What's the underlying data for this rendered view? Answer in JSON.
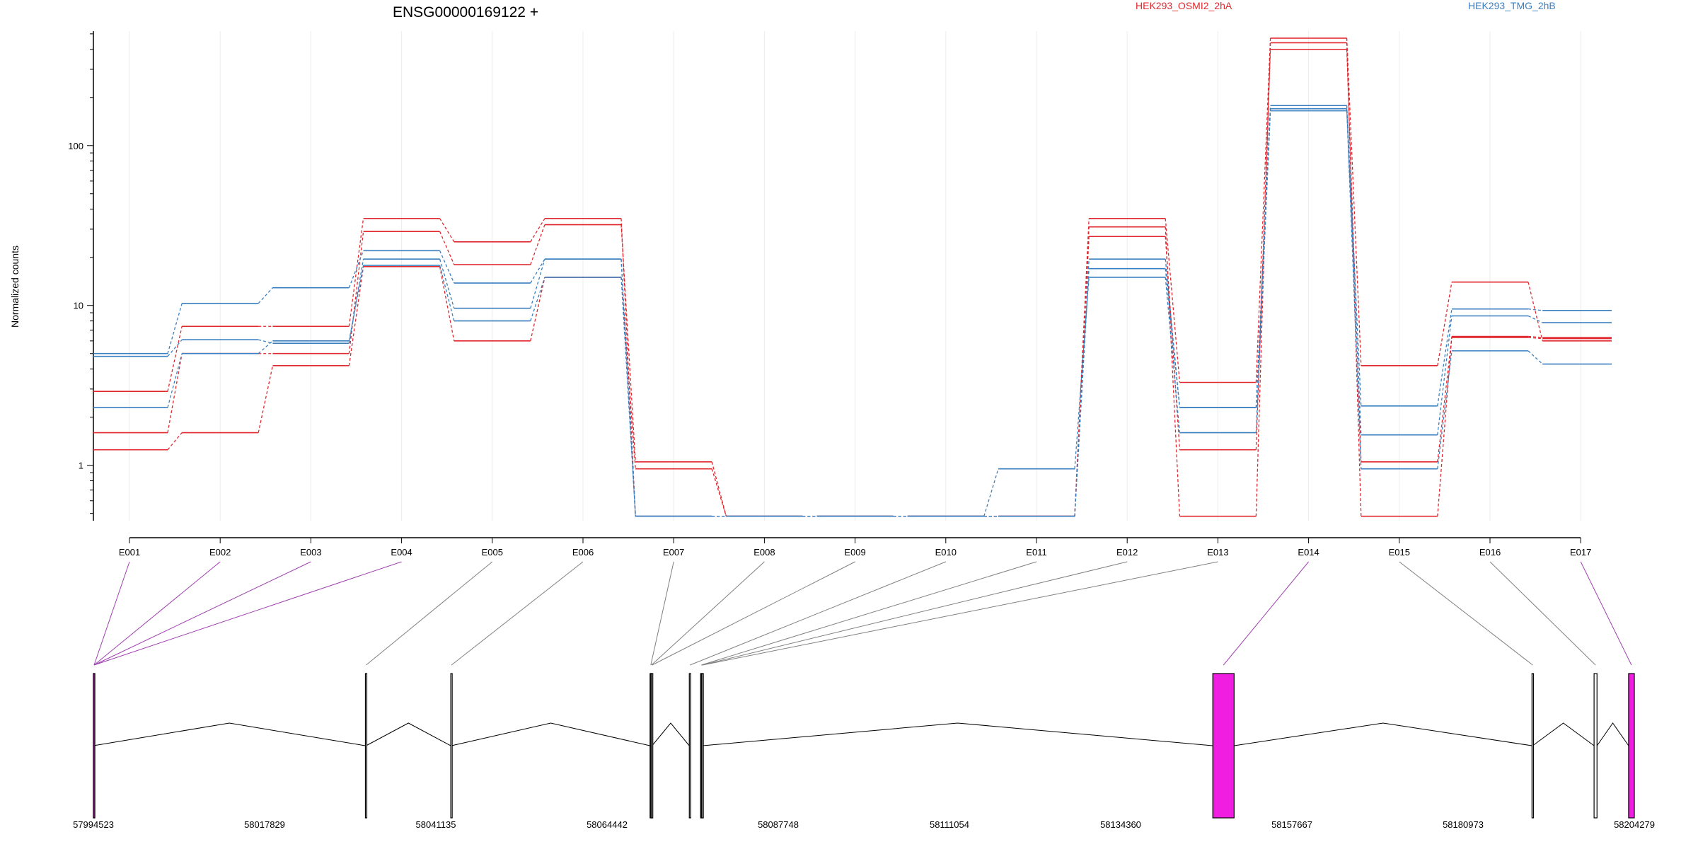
{
  "chart_data": {
    "type": "line",
    "title": "ENSG00000169122 +",
    "ylabel": "Normalized counts",
    "yscale": "log",
    "yticks": [
      1,
      10,
      100
    ],
    "ylim": [
      0.45,
      520
    ],
    "grid": "vertical",
    "legend_position": "top",
    "categories": [
      "E001",
      "E002",
      "E003",
      "E004",
      "E005",
      "E006",
      "E007",
      "E008",
      "E009",
      "E010",
      "E011",
      "E012",
      "E013",
      "E014",
      "E015",
      "E016",
      "E017"
    ],
    "colors": {
      "HEK293_OSMI2_2hA": "#e0282e",
      "HEK293_TMG_2hB": "#3a7fbf",
      "exon_highlight": "#f01ee0",
      "exon_normal": "#ffffff",
      "connector_highlight": "#a040b0",
      "connector_normal": "#808080"
    },
    "series": [
      {
        "name": "HEK293_OSMI2_2hA",
        "values": [
          1.25,
          1.6,
          4.2,
          17.5,
          6.0,
          15.0,
          0.95,
          0.48,
          0.48,
          0.48,
          0.48,
          27,
          1.25,
          400,
          1.05,
          6.3,
          6.2
        ]
      },
      {
        "values": [
          1.6,
          5.0,
          5.0,
          29,
          18,
          32,
          1.05,
          0.48,
          0.48,
          0.48,
          0.48,
          31,
          0.48,
          440,
          0.48,
          6.4,
          6.3
        ]
      },
      {
        "values": [
          2.9,
          7.4,
          7.4,
          35,
          25,
          35,
          0.48,
          0.48,
          0.48,
          0.48,
          0.48,
          35,
          3.3,
          470,
          4.2,
          14,
          6.0
        ]
      },
      {
        "name": "HEK293_TMG_2hB",
        "values": [
          2.3,
          5.0,
          6.0,
          17.8,
          8.0,
          15,
          0.48,
          0.48,
          0.48,
          0.48,
          0.95,
          15,
          1.6,
          165,
          0.95,
          5.2,
          4.3
        ]
      },
      {
        "values": [
          4.8,
          6.1,
          5.8,
          19.5,
          9.6,
          19.5,
          0.48,
          0.48,
          0.48,
          0.48,
          0.48,
          17,
          2.3,
          170,
          1.55,
          8.6,
          7.8
        ]
      },
      {
        "values": [
          5.0,
          10.3,
          12.9,
          22,
          13.8,
          19.5,
          0.48,
          0.48,
          0.48,
          0.48,
          0.48,
          19.5,
          2.3,
          178,
          2.35,
          9.5,
          9.3
        ]
      }
    ],
    "gene_model": {
      "coordinate_labels": [
        "57994523",
        "58017829",
        "58041135",
        "58064442",
        "58087748",
        "58111054",
        "58134360",
        "58157667",
        "58180973",
        "58204279"
      ],
      "coordinate_range": [
        57994523,
        58204279
      ],
      "exons": [
        {
          "id": "E001",
          "start": 57994523,
          "end": 57994700,
          "highlight": true
        },
        {
          "id": "E002",
          "start": 57994523,
          "end": 57994610,
          "highlight": true
        },
        {
          "id": "E003",
          "start": 57994523,
          "end": 57994610,
          "highlight": true
        },
        {
          "id": "E004",
          "start": 57994523,
          "end": 57994610,
          "highlight": true
        },
        {
          "id": "E005",
          "start": 58031550,
          "end": 58031640,
          "highlight": false
        },
        {
          "id": "E006",
          "start": 58043170,
          "end": 58043260,
          "highlight": false
        },
        {
          "id": "E007",
          "start": 58070300,
          "end": 58070390,
          "highlight": false
        },
        {
          "id": "E008",
          "start": 58070390,
          "end": 58070480,
          "highlight": false
        },
        {
          "id": "E009",
          "start": 58070480,
          "end": 58070570,
          "highlight": false
        },
        {
          "id": "E010",
          "start": 58075640,
          "end": 58075730,
          "highlight": false
        },
        {
          "id": "E011",
          "start": 58077180,
          "end": 58077270,
          "highlight": false
        },
        {
          "id": "E012",
          "start": 58077270,
          "end": 58077360,
          "highlight": false
        },
        {
          "id": "E013",
          "start": 58077360,
          "end": 58077450,
          "highlight": false
        },
        {
          "id": "E014",
          "start": 58146900,
          "end": 58149800,
          "highlight": true
        },
        {
          "id": "E015",
          "start": 58190350,
          "end": 58190440,
          "highlight": false
        },
        {
          "id": "E016",
          "start": 58198800,
          "end": 58199200,
          "highlight": false
        },
        {
          "id": "E017",
          "start": 58203500,
          "end": 58204279,
          "highlight": true
        }
      ],
      "introns": [
        [
          57994523,
          58031550
        ],
        [
          58031640,
          58043170
        ],
        [
          58043260,
          58070300
        ],
        [
          58070570,
          58075640
        ],
        [
          58077450,
          58146900
        ],
        [
          58149800,
          58190350
        ],
        [
          58190440,
          58198800
        ],
        [
          58199200,
          58203500
        ]
      ]
    }
  }
}
